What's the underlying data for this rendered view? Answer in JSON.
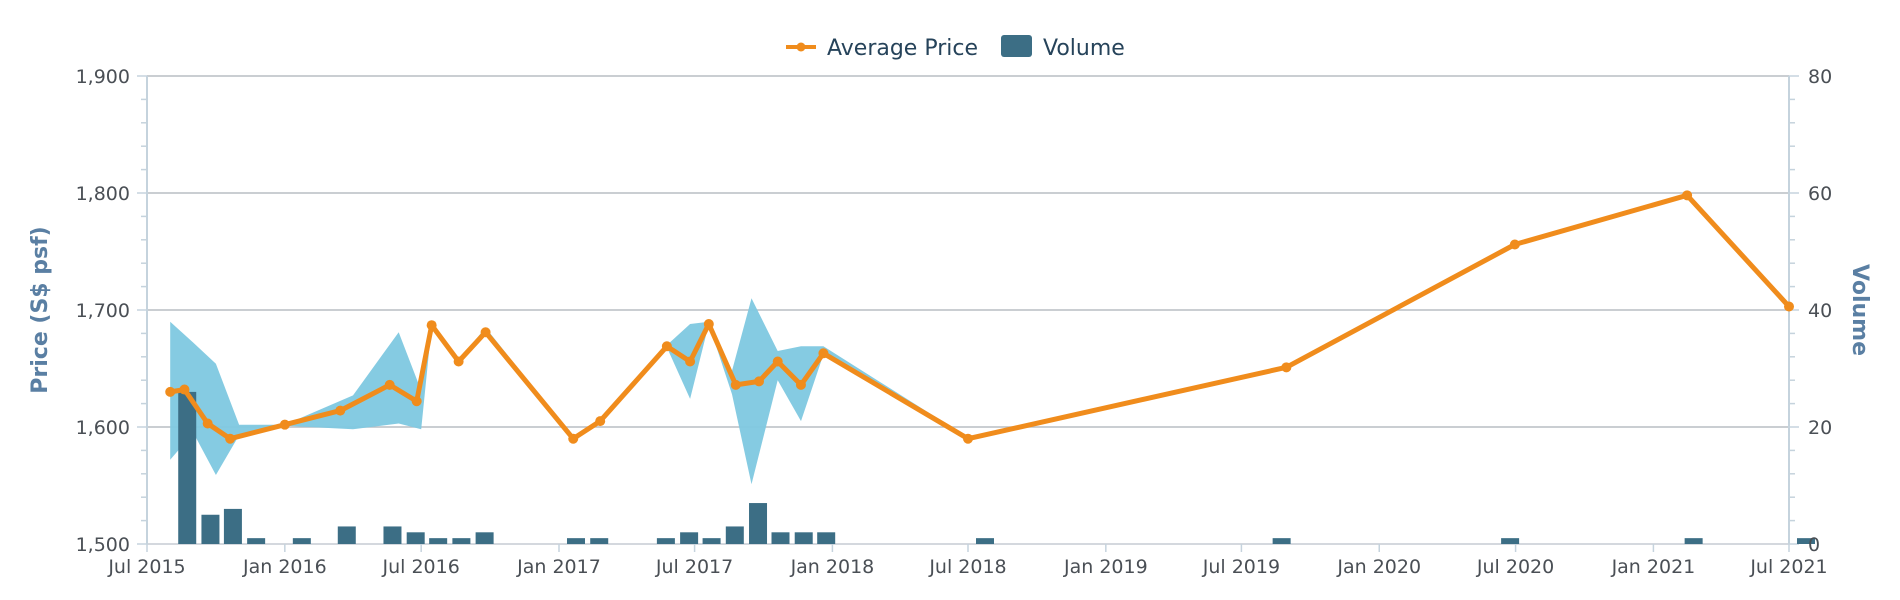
{
  "chart_data": {
    "type": "line",
    "title": "",
    "legend": {
      "position": "top-center",
      "items": [
        {
          "label": "Average Price",
          "color": "#f08c1c",
          "symbol": "line-marker"
        },
        {
          "label": "Volume",
          "color": "#3c6e85",
          "symbol": "bar"
        }
      ]
    },
    "x_axis": {
      "type": "date",
      "ticks": [
        "Jul 2015",
        "Jan 2016",
        "Jul 2016",
        "Jan 2017",
        "Jul 2017",
        "Jan 2018",
        "Jul 2018",
        "Jan 2019",
        "Jul 2019",
        "Jan 2020",
        "Jul 2020",
        "Jan 2021",
        "Jul 2021"
      ]
    },
    "y_axis_left": {
      "label": "Price (S$ psf)",
      "range": [
        1500,
        1900
      ],
      "ticks": [
        "1,500",
        "1,600",
        "1,700",
        "1,800",
        "1,900"
      ]
    },
    "y_axis_right": {
      "label": "Volume",
      "range": [
        0,
        80
      ],
      "ticks": [
        "0",
        "20",
        "40",
        "60",
        "80"
      ]
    },
    "grid": true,
    "colors": {
      "price": "#f08c1c",
      "volume": "#3c6e85",
      "range": "#7ec8e0",
      "grid": "#b9bec4",
      "axis": "#c5d3dd"
    },
    "series": [
      {
        "name": "Average Price",
        "type": "line",
        "points": [
          [
            "2015-08-01",
            1630
          ],
          [
            "2015-08-20",
            1632
          ],
          [
            "2015-09-20",
            1603
          ],
          [
            "2015-10-20",
            1590
          ],
          [
            "2016-01-01",
            1602
          ],
          [
            "2016-03-15",
            1614
          ],
          [
            "2016-05-20",
            1636
          ],
          [
            "2016-06-25",
            1622
          ],
          [
            "2016-07-15",
            1687
          ],
          [
            "2016-08-20",
            1656
          ],
          [
            "2016-09-25",
            1681
          ],
          [
            "2017-01-20",
            1590
          ],
          [
            "2017-02-25",
            1605
          ],
          [
            "2017-05-25",
            1669
          ],
          [
            "2017-06-25",
            1656
          ],
          [
            "2017-07-20",
            1688
          ],
          [
            "2017-08-25",
            1636
          ],
          [
            "2017-09-25",
            1639
          ],
          [
            "2017-10-20",
            1656
          ],
          [
            "2017-11-20",
            1636
          ],
          [
            "2017-12-20",
            1663
          ],
          [
            "2018-07-01",
            1590
          ],
          [
            "2019-08-30",
            1651
          ],
          [
            "2020-06-30",
            1756
          ],
          [
            "2021-02-15",
            1798
          ],
          [
            "2021-07-01",
            1703
          ]
        ]
      },
      {
        "name": "Price Range",
        "type": "area-range",
        "points": [
          [
            "2015-08-01",
            1572,
            1690
          ],
          [
            "2015-09-01",
            1595,
            1672
          ],
          [
            "2015-10-01",
            1559,
            1654
          ],
          [
            "2015-11-01",
            1593,
            1602
          ],
          [
            "2016-01-01",
            1601,
            1602
          ],
          [
            "2016-04-01",
            1598,
            1627
          ],
          [
            "2016-06-01",
            1603,
            1681
          ],
          [
            "2016-07-01",
            1598,
            1631
          ],
          [
            "2016-07-15",
            1687,
            1688
          ],
          [
            "2016-08-20",
            1656,
            1657
          ],
          [
            "2016-09-25",
            1679,
            1685
          ],
          [
            "2017-01-20",
            1590,
            1591
          ],
          [
            "2017-02-25",
            1605,
            1606
          ],
          [
            "2017-05-25",
            1668,
            1670
          ],
          [
            "2017-06-25",
            1624,
            1688
          ],
          [
            "2017-07-20",
            1688,
            1690
          ],
          [
            "2017-08-20",
            1628,
            1648
          ],
          [
            "2017-09-15",
            1551,
            1710
          ],
          [
            "2017-10-20",
            1640,
            1665
          ],
          [
            "2017-11-20",
            1605,
            1669
          ],
          [
            "2017-12-20",
            1662,
            1669
          ],
          [
            "2018-07-01",
            1590,
            1591
          ]
        ]
      },
      {
        "name": "Volume",
        "type": "bar",
        "points": [
          [
            "2015-08-01",
            26
          ],
          [
            "2015-09-01",
            5
          ],
          [
            "2015-10-01",
            6
          ],
          [
            "2015-11-01",
            1
          ],
          [
            "2016-01-01",
            1
          ],
          [
            "2016-03-01",
            3
          ],
          [
            "2016-05-01",
            3
          ],
          [
            "2016-06-01",
            2
          ],
          [
            "2016-07-01",
            1
          ],
          [
            "2016-08-01",
            1
          ],
          [
            "2016-09-01",
            2
          ],
          [
            "2017-01-01",
            1
          ],
          [
            "2017-02-01",
            1
          ],
          [
            "2017-05-01",
            1
          ],
          [
            "2017-06-01",
            2
          ],
          [
            "2017-07-01",
            1
          ],
          [
            "2017-08-01",
            3
          ],
          [
            "2017-09-01",
            7
          ],
          [
            "2017-10-01",
            2
          ],
          [
            "2017-11-01",
            2
          ],
          [
            "2017-12-01",
            2
          ],
          [
            "2018-07-01",
            1
          ],
          [
            "2019-08-01",
            1
          ],
          [
            "2020-06-01",
            1
          ],
          [
            "2021-02-01",
            1
          ],
          [
            "2021-07-01",
            1
          ]
        ]
      }
    ]
  }
}
